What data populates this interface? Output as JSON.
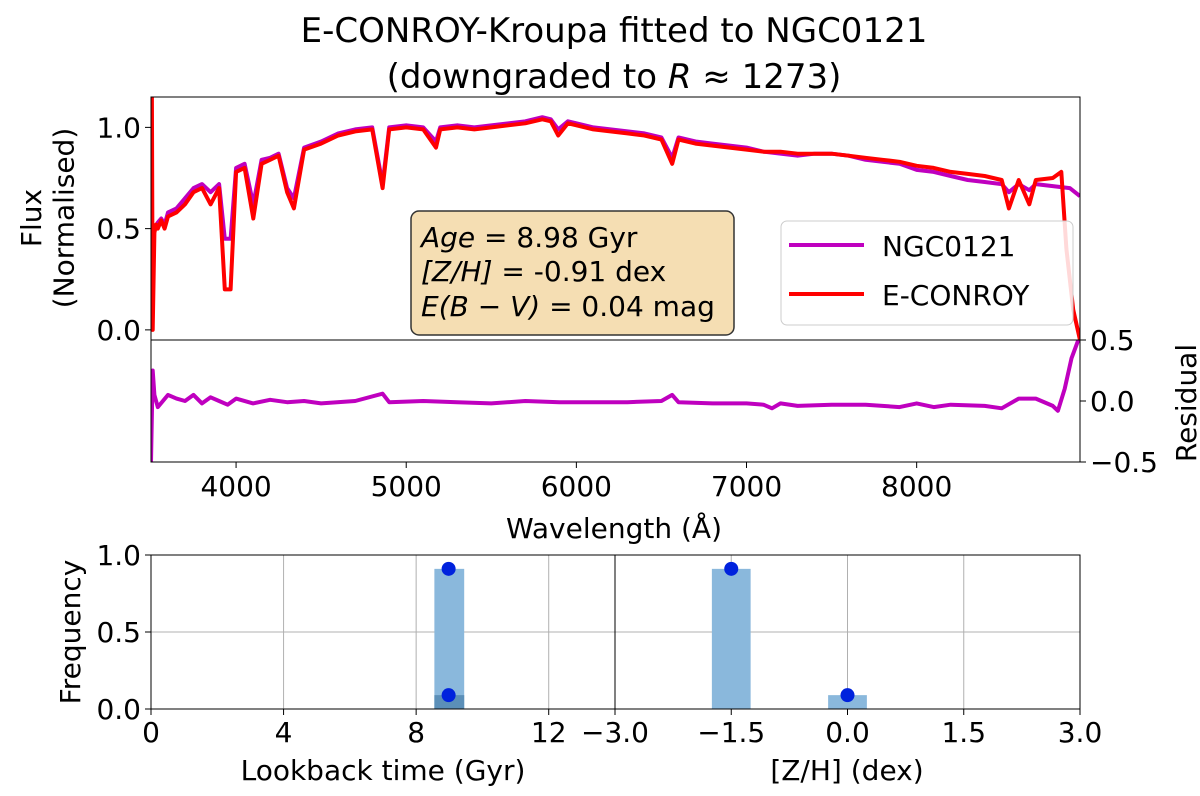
{
  "title": {
    "line1": "E-CONROY-Kroupa fitted to NGC0121",
    "line2_prefix": "(downgraded to ",
    "line2_var": "R",
    "line2_suffix": " ≈ 1273)"
  },
  "colors": {
    "observed": "#bf00bf",
    "model": "#ff0000",
    "bar": "#8ab8dc",
    "bar_dark": "#5b8fb8",
    "marker": "#0022dd",
    "infobox_fill": "#f5deb3",
    "grid": "#b0b0b0"
  },
  "infobox": {
    "age_var": "Age",
    "age_val": " = 8.98 Gyr",
    "zh_var": "[Z/H]",
    "zh_val": " = -0.91 dex",
    "ebv_var": "E(B − V)",
    "ebv_val": " = 0.04 mag"
  },
  "chart_data": [
    {
      "type": "line",
      "panel": "spectrum",
      "title": "E-CONROY-Kroupa fitted to NGC0121 (downgraded to R ≈ 1273)",
      "xlabel": "Wavelength (Å)",
      "ylabel": "Flux (Normalised)",
      "xlim": [
        3500,
        8960
      ],
      "ylim": [
        -0.05,
        1.15
      ],
      "yticks": [
        "0.0",
        "0.5",
        "1.0"
      ],
      "legend_position": "center-right",
      "series": [
        {
          "name": "NGC0121",
          "x": [
            3500,
            3520,
            3540,
            3560,
            3580,
            3600,
            3650,
            3700,
            3750,
            3800,
            3850,
            3900,
            3934,
            3968,
            4000,
            4050,
            4101,
            4150,
            4200,
            4250,
            4300,
            4340,
            4400,
            4500,
            4600,
            4700,
            4800,
            4861,
            4900,
            5000,
            5100,
            5175,
            5200,
            5300,
            5400,
            5500,
            5600,
            5700,
            5800,
            5850,
            5893,
            5950,
            6000,
            6100,
            6200,
            6300,
            6400,
            6500,
            6563,
            6600,
            6700,
            6800,
            6900,
            7000,
            7100,
            7200,
            7300,
            7400,
            7500,
            7600,
            7700,
            7800,
            7900,
            8000,
            8100,
            8200,
            8300,
            8400,
            8500,
            8542,
            8600,
            8662,
            8700,
            8800,
            8900,
            8960
          ],
          "y": [
            0.45,
            0.5,
            0.53,
            0.55,
            0.52,
            0.58,
            0.6,
            0.65,
            0.7,
            0.72,
            0.68,
            0.72,
            0.45,
            0.45,
            0.8,
            0.82,
            0.62,
            0.84,
            0.85,
            0.87,
            0.7,
            0.65,
            0.9,
            0.93,
            0.97,
            0.99,
            1.0,
            0.72,
            1.0,
            1.01,
            1.0,
            0.93,
            1.0,
            1.01,
            1.0,
            1.01,
            1.02,
            1.03,
            1.05,
            1.04,
            0.99,
            1.03,
            1.02,
            1.0,
            0.99,
            0.98,
            0.97,
            0.95,
            0.85,
            0.95,
            0.93,
            0.92,
            0.91,
            0.9,
            0.88,
            0.87,
            0.86,
            0.87,
            0.87,
            0.86,
            0.84,
            0.83,
            0.82,
            0.79,
            0.78,
            0.76,
            0.74,
            0.73,
            0.72,
            0.68,
            0.72,
            0.69,
            0.72,
            0.71,
            0.7,
            0.66
          ]
        },
        {
          "name": "E-CONROY",
          "x": [
            3500,
            3505,
            3510,
            3520,
            3530,
            3540,
            3560,
            3580,
            3600,
            3650,
            3700,
            3750,
            3800,
            3850,
            3900,
            3934,
            3968,
            4000,
            4050,
            4101,
            4150,
            4200,
            4250,
            4300,
            4340,
            4400,
            4500,
            4600,
            4700,
            4800,
            4861,
            4900,
            5000,
            5100,
            5175,
            5200,
            5300,
            5400,
            5500,
            5600,
            5700,
            5800,
            5850,
            5893,
            5950,
            6000,
            6100,
            6200,
            6300,
            6400,
            6500,
            6563,
            6600,
            6700,
            6800,
            6900,
            7000,
            7100,
            7200,
            7300,
            7400,
            7500,
            7600,
            7700,
            7800,
            7900,
            8000,
            8100,
            8200,
            8300,
            8400,
            8500,
            8542,
            8600,
            8662,
            8700,
            8800,
            8850,
            8880,
            8920,
            8960
          ],
          "y": [
            0.5,
            1.15,
            0.0,
            0.48,
            0.52,
            0.5,
            0.54,
            0.5,
            0.56,
            0.58,
            0.62,
            0.68,
            0.7,
            0.62,
            0.7,
            0.2,
            0.2,
            0.78,
            0.8,
            0.55,
            0.82,
            0.84,
            0.86,
            0.68,
            0.6,
            0.89,
            0.92,
            0.96,
            0.98,
            0.99,
            0.7,
            0.99,
            1.0,
            0.99,
            0.9,
            0.99,
            1.0,
            0.99,
            1.0,
            1.01,
            1.02,
            1.04,
            1.03,
            0.96,
            1.02,
            1.01,
            0.99,
            0.98,
            0.97,
            0.96,
            0.94,
            0.82,
            0.94,
            0.92,
            0.91,
            0.9,
            0.89,
            0.88,
            0.88,
            0.87,
            0.87,
            0.87,
            0.86,
            0.85,
            0.84,
            0.83,
            0.81,
            0.8,
            0.78,
            0.77,
            0.76,
            0.74,
            0.6,
            0.74,
            0.62,
            0.74,
            0.75,
            0.78,
            0.4,
            0.1,
            -0.05
          ]
        }
      ]
    },
    {
      "type": "line",
      "panel": "residual",
      "xlabel": "Wavelength (Å)",
      "ylabel": "Residual",
      "xlim": [
        3500,
        8960
      ],
      "ylim": [
        -0.5,
        0.5
      ],
      "xticks": [
        "4000",
        "5000",
        "6000",
        "7000",
        "8000"
      ],
      "yticks": [
        "−0.5",
        "0.0",
        "0.5"
      ],
      "series": [
        {
          "name": "Residual",
          "x": [
            3500,
            3510,
            3520,
            3540,
            3600,
            3650,
            3700,
            3750,
            3800,
            3850,
            3900,
            3950,
            4000,
            4100,
            4200,
            4300,
            4400,
            4500,
            4700,
            4861,
            4900,
            5100,
            5300,
            5500,
            5700,
            5900,
            6100,
            6300,
            6500,
            6563,
            6600,
            6800,
            7000,
            7100,
            7150,
            7200,
            7300,
            7500,
            7700,
            7900,
            8000,
            8100,
            8200,
            8400,
            8500,
            8600,
            8700,
            8800,
            8830,
            8870,
            8910,
            8950
          ],
          "y": [
            -0.5,
            0.25,
            0.05,
            -0.05,
            0.05,
            0.02,
            0.0,
            0.05,
            -0.02,
            0.03,
            0.0,
            -0.03,
            0.02,
            -0.02,
            0.01,
            -0.01,
            0.0,
            -0.02,
            0.0,
            0.06,
            -0.01,
            0.0,
            -0.01,
            -0.02,
            0.0,
            -0.01,
            -0.01,
            -0.01,
            0.0,
            0.05,
            -0.01,
            -0.02,
            -0.02,
            -0.03,
            -0.06,
            -0.02,
            -0.04,
            -0.03,
            -0.03,
            -0.05,
            -0.02,
            -0.05,
            -0.03,
            -0.04,
            -0.06,
            0.02,
            0.02,
            -0.04,
            -0.08,
            0.1,
            0.35,
            0.5
          ]
        }
      ]
    },
    {
      "type": "bar",
      "panel": "age-histogram",
      "xlabel": "Lookback time (Gyr)",
      "ylabel": "Frequency",
      "xlim": [
        0,
        14
      ],
      "ylim": [
        0,
        1
      ],
      "xticks": [
        "0",
        "4",
        "8",
        "12"
      ],
      "yticks": [
        "0.0",
        "0.5",
        "1.0"
      ],
      "grid": true,
      "bars": [
        {
          "x": 9.0,
          "width": 0.9,
          "value": 0.91
        },
        {
          "x": 9.0,
          "width": 0.9,
          "value": 0.09
        }
      ],
      "points": [
        {
          "x": 8.98,
          "y": 0.91
        },
        {
          "x": 8.98,
          "y": 0.09
        }
      ]
    },
    {
      "type": "bar",
      "panel": "metallicity-histogram",
      "xlabel": "[Z/H] (dex)",
      "ylim": [
        0,
        1
      ],
      "xlim": [
        -3.0,
        3.0
      ],
      "xticks": [
        "−3.0",
        "−1.5",
        "0.0",
        "1.5",
        "3.0"
      ],
      "grid": true,
      "bars": [
        {
          "x": -1.5,
          "width": 0.5,
          "value": 0.91
        },
        {
          "x": 0.0,
          "width": 0.5,
          "value": 0.09
        }
      ],
      "points": [
        {
          "x": -1.5,
          "y": 0.91
        },
        {
          "x": 0.0,
          "y": 0.09
        }
      ]
    }
  ]
}
